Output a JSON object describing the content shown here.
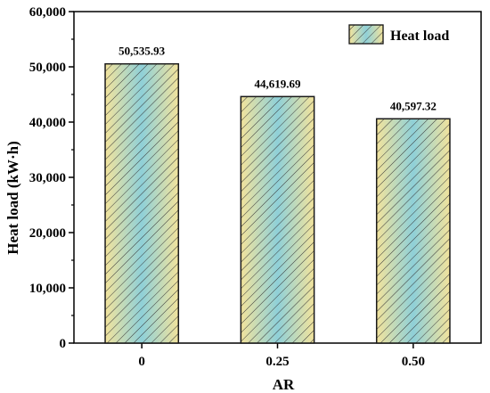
{
  "chart_data": {
    "type": "bar",
    "categories": [
      "0",
      "0.25",
      "0.50"
    ],
    "series": [
      {
        "name": "Heat load",
        "values": [
          50535.93,
          44619.69,
          40597.32
        ]
      }
    ],
    "data_labels": [
      "50,535.93",
      "44,619.69",
      "40,597.32"
    ],
    "xlabel": "AR",
    "ylabel": "Heat load (kW·h)",
    "ylim": [
      0,
      60000
    ],
    "y_ticks": [
      0,
      10000,
      20000,
      30000,
      40000,
      50000,
      60000
    ],
    "y_tick_labels": [
      "0",
      "10,000",
      "20,000",
      "30,000",
      "40,000",
      "50,000",
      "60,000"
    ],
    "legend_position": "top-right",
    "grid": false,
    "colors": {
      "bar_edge": "#1a1a1a",
      "bar_fill_center": "#8fd0d8",
      "bar_fill_edge": "#f2e39c",
      "hatch": "#3a3a3a"
    }
  }
}
